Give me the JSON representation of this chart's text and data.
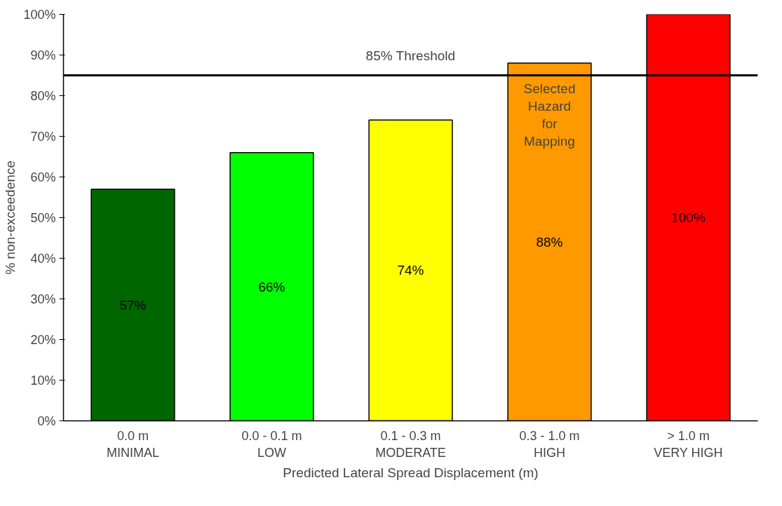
{
  "chart_data": {
    "type": "bar",
    "xlabel": "Predicted Lateral Spread Displacement (m)",
    "ylabel": "% non-exceedence",
    "categories": [
      "0.0 m\nMINIMAL",
      "0.0 - 0.1 m\nLOW",
      "0.1 - 0.3 m\nMODERATE",
      "0.3 - 1.0 m\nHIGH",
      "> 1.0 m\nVERY HIGH"
    ],
    "values": [
      57,
      66,
      74,
      88,
      100
    ],
    "colors": [
      "#006600",
      "#00ff00",
      "#ffff00",
      "#ff9900",
      "#ff0000"
    ],
    "value_labels": [
      "57%",
      "66%",
      "74%",
      "88%",
      "100%"
    ],
    "ylim": [
      0,
      100
    ],
    "yticks": [
      {
        "value": 0,
        "label": "0%"
      },
      {
        "value": 10,
        "label": "10%"
      },
      {
        "value": 20,
        "label": "20%"
      },
      {
        "value": 30,
        "label": "30%"
      },
      {
        "value": 40,
        "label": "40%"
      },
      {
        "value": 50,
        "label": "50%"
      },
      {
        "value": 60,
        "label": "60%"
      },
      {
        "value": 70,
        "label": "70%"
      },
      {
        "value": 80,
        "label": "80%"
      },
      {
        "value": 90,
        "label": "90%"
      },
      {
        "value": 100,
        "label": "100%"
      }
    ],
    "ref_lines": [
      {
        "axis": "y",
        "value": 85,
        "label": "85% Threshold",
        "color": "#000000"
      }
    ],
    "annotations": [
      "Selected\nHazard\nfor\nMapping"
    ],
    "grid": false
  }
}
